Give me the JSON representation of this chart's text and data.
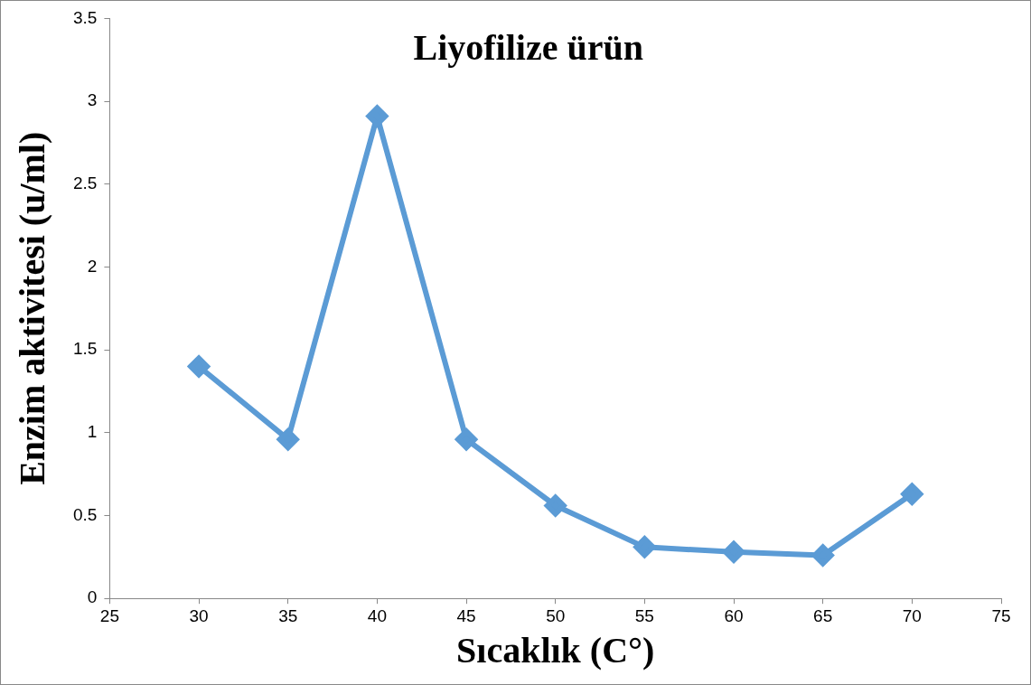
{
  "chart_data": {
    "type": "line",
    "title": "Liyofilize ürün",
    "xlabel": "Sıcaklık (C°)",
    "ylabel": "Enzim aktivitesi (u/ml)",
    "x": [
      30,
      35,
      40,
      45,
      50,
      55,
      60,
      65,
      70
    ],
    "series": [
      {
        "color": "#5b9bd5",
        "values": [
          1.4,
          0.96,
          2.91,
          0.96,
          0.56,
          0.31,
          0.28,
          0.26,
          0.63
        ]
      }
    ],
    "xlim": [
      25,
      75
    ],
    "xticks": [
      25,
      30,
      35,
      40,
      45,
      50,
      55,
      60,
      65,
      70,
      75
    ],
    "ylim": [
      0,
      3.5
    ],
    "yticks": [
      0,
      0.5,
      1,
      1.5,
      2,
      2.5,
      3,
      3.5
    ],
    "grid": false,
    "legend": false,
    "marker": "diamond",
    "line_style": "solid"
  }
}
